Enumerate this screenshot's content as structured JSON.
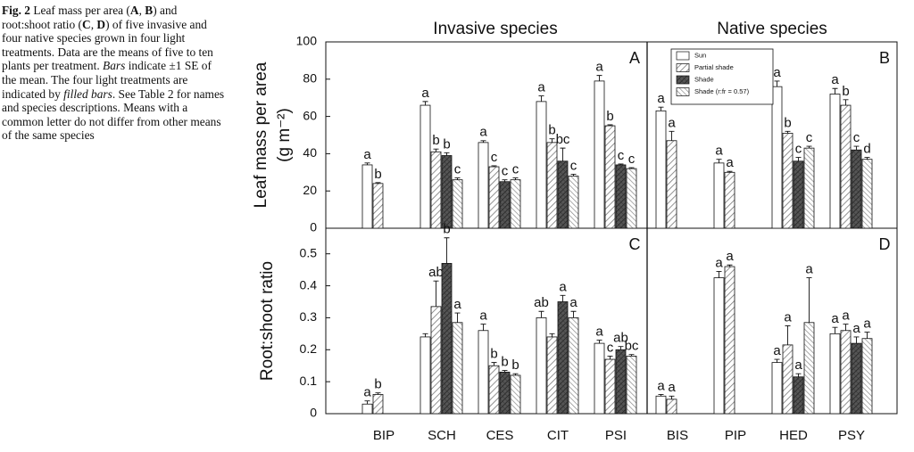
{
  "caption": [
    {
      "text": "Fig. 2",
      "style": "bold"
    },
    {
      "text": " Leaf mass per area (",
      "style": "normal"
    },
    {
      "text": "A",
      "style": "bold"
    },
    {
      "text": ", ",
      "style": "normal"
    },
    {
      "text": "B",
      "style": "bold"
    },
    {
      "text": ") and root:shoot ratio (",
      "style": "normal"
    },
    {
      "text": "C",
      "style": "bold"
    },
    {
      "text": ", ",
      "style": "normal"
    },
    {
      "text": "D",
      "style": "bold"
    },
    {
      "text": ") of five invasive and four native species grown in four light treatments. Data are the means of five to ten plants per treatment. ",
      "style": "normal"
    },
    {
      "text": "Bars",
      "style": "italic"
    },
    {
      "text": " indicate ±1 SE of the mean. The four light treatments are indicated by ",
      "style": "normal"
    },
    {
      "text": "filled bars",
      "style": "italic"
    },
    {
      "text": ". See Table 2 for names and species descriptions. Means with a common letter do not differ from other means of the same species",
      "style": "normal"
    }
  ],
  "chart_data": [
    {
      "type": "bar",
      "title": "Invasive species",
      "panel_label": "A",
      "ylabel": [
        "Leaf mass per area",
        "(g m⁻²)"
      ],
      "ylim": [
        0,
        100
      ],
      "yticks": [
        0,
        20,
        40,
        60,
        80,
        100
      ],
      "series": [
        {
          "pattern": "open",
          "values": [
            34,
            66,
            46,
            68,
            79
          ],
          "errors": [
            1,
            2,
            1,
            3,
            3
          ],
          "letters": [
            "a",
            "a",
            "a",
            "a",
            "a"
          ]
        },
        {
          "pattern": "hatch",
          "values": [
            24,
            41,
            33,
            46,
            55
          ],
          "errors": [
            0.5,
            1.5,
            0.5,
            2,
            0.5
          ],
          "letters": [
            "b",
            "b",
            "c",
            "b",
            "b"
          ]
        },
        {
          "pattern": "dark",
          "values": [
            null,
            39,
            25,
            36,
            34
          ],
          "errors": [
            null,
            1.5,
            1,
            7,
            0.5
          ],
          "letters": [
            null,
            "b",
            "c",
            "bc",
            "c"
          ]
        },
        {
          "pattern": "backhatch",
          "values": [
            null,
            26,
            26,
            28,
            32
          ],
          "errors": [
            null,
            1,
            1,
            1,
            0.5
          ],
          "letters": [
            null,
            "c",
            "c",
            "c",
            "c"
          ]
        }
      ]
    },
    {
      "type": "bar",
      "title": "Native species",
      "panel_label": "B",
      "legend": "upper-left",
      "ylim": [
        0,
        100
      ],
      "series": [
        {
          "name": "Sun",
          "pattern": "open",
          "values": [
            63,
            35,
            76,
            72
          ],
          "errors": [
            2,
            2,
            3,
            3
          ],
          "letters": [
            "a",
            "a",
            "a",
            "a"
          ]
        },
        {
          "name": "Partial shade",
          "pattern": "hatch",
          "values": [
            47,
            30,
            51,
            66
          ],
          "errors": [
            5,
            0.5,
            1,
            3
          ],
          "letters": [
            "a",
            "a",
            "b",
            "b"
          ]
        },
        {
          "name": "Shade",
          "pattern": "dark",
          "values": [
            null,
            null,
            36,
            42
          ],
          "errors": [
            null,
            null,
            2,
            2
          ],
          "letters": [
            null,
            null,
            "c",
            "c"
          ]
        },
        {
          "name": "Shade (r:fr = 0.57)",
          "pattern": "backhatch",
          "values": [
            null,
            null,
            43,
            37
          ],
          "errors": [
            null,
            null,
            1,
            1
          ],
          "letters": [
            null,
            null,
            "c",
            "d"
          ]
        }
      ]
    },
    {
      "type": "bar",
      "panel_label": "C",
      "ylabel": [
        "Root:shoot ratio"
      ],
      "categories": [
        "BIP",
        "SCH",
        "CES",
        "CIT",
        "PSI"
      ],
      "ylim": [
        0,
        0.58
      ],
      "yticks": [
        0.0,
        0.1,
        0.2,
        0.3,
        0.4,
        0.5
      ],
      "series": [
        {
          "pattern": "open",
          "values": [
            0.03,
            0.24,
            0.26,
            0.3,
            0.22
          ],
          "errors": [
            0.01,
            0.01,
            0.02,
            0.02,
            0.01
          ],
          "letters": [
            "a",
            null,
            "a",
            "ab",
            "a"
          ]
        },
        {
          "pattern": "hatch",
          "values": [
            0.06,
            0.335,
            0.15,
            0.24,
            0.17
          ],
          "errors": [
            0.005,
            0.08,
            0.01,
            0.01,
            0.01
          ],
          "letters": [
            "b",
            "ab",
            "b",
            null,
            "c"
          ]
        },
        {
          "pattern": "dark",
          "values": [
            null,
            0.47,
            0.13,
            0.35,
            0.2
          ],
          "errors": [
            null,
            0.08,
            0.005,
            0.02,
            0.01
          ],
          "letters": [
            null,
            "b",
            "b",
            "a",
            "ab"
          ]
        },
        {
          "pattern": "backhatch",
          "values": [
            null,
            0.285,
            0.12,
            0.3,
            0.18
          ],
          "errors": [
            null,
            0.03,
            0.005,
            0.02,
            0.005
          ],
          "letters": [
            null,
            "a",
            "b",
            "a",
            "bc"
          ]
        }
      ]
    },
    {
      "type": "bar",
      "panel_label": "D",
      "categories": [
        "BIS",
        "PIP",
        "HED",
        "PSY"
      ],
      "ylim": [
        0,
        0.58
      ],
      "series": [
        {
          "pattern": "open",
          "values": [
            0.055,
            0.425,
            0.16,
            0.25
          ],
          "errors": [
            0.005,
            0.02,
            0.01,
            0.02
          ],
          "letters": [
            "a",
            "a",
            "a",
            "a"
          ]
        },
        {
          "pattern": "hatch",
          "values": [
            0.045,
            0.46,
            0.215,
            0.26
          ],
          "errors": [
            0.01,
            0.005,
            0.06,
            0.02
          ],
          "letters": [
            "a",
            "a",
            "a",
            "a"
          ]
        },
        {
          "pattern": "dark",
          "values": [
            null,
            null,
            0.115,
            0.22
          ],
          "errors": [
            null,
            null,
            0.01,
            0.02
          ],
          "letters": [
            null,
            null,
            "a",
            "a"
          ]
        },
        {
          "pattern": "backhatch",
          "values": [
            null,
            null,
            0.285,
            0.235
          ],
          "errors": [
            null,
            null,
            0.14,
            0.02
          ],
          "letters": [
            null,
            null,
            "a",
            "a"
          ]
        }
      ]
    }
  ]
}
